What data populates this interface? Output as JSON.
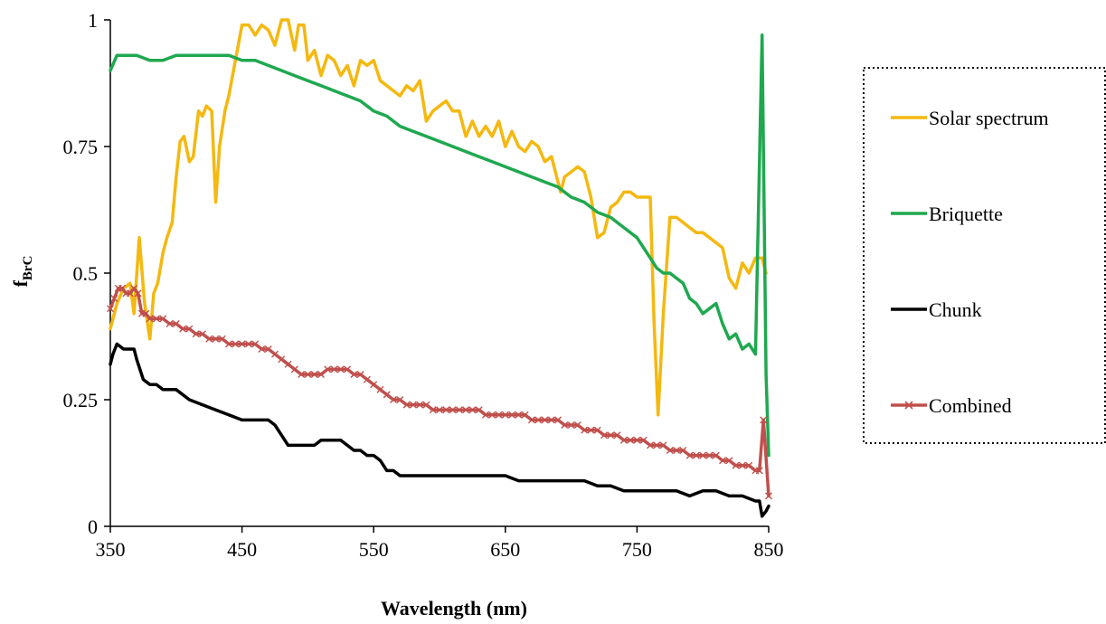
{
  "chart_data": {
    "type": "line",
    "xlabel": "Wavelength (nm)",
    "ylabel_main": "f",
    "ylabel_sub": "BrC",
    "xlim": [
      350,
      850
    ],
    "ylim": [
      0,
      1
    ],
    "x_ticks": [
      350,
      450,
      550,
      650,
      750,
      850
    ],
    "y_ticks": [
      0,
      0.25,
      0.5,
      0.75,
      1
    ],
    "y_tick_labels": [
      "0",
      "0.25",
      "0.5",
      "0.75",
      "1"
    ],
    "grid": false,
    "legend_position": "right",
    "series": [
      {
        "name": "Solar spectrum",
        "color": "#f4b810",
        "marker": "none",
        "x": [
          350,
          355,
          360,
          365,
          368,
          372,
          376,
          380,
          383,
          386,
          390,
          393,
          397,
          400,
          403,
          406,
          410,
          413,
          417,
          420,
          423,
          427,
          430,
          433,
          437,
          440,
          445,
          450,
          455,
          460,
          465,
          470,
          475,
          480,
          485,
          490,
          493,
          497,
          500,
          505,
          510,
          515,
          520,
          525,
          530,
          535,
          540,
          545,
          550,
          555,
          560,
          565,
          570,
          575,
          580,
          585,
          590,
          595,
          600,
          605,
          610,
          615,
          620,
          625,
          630,
          635,
          640,
          645,
          650,
          655,
          660,
          665,
          670,
          675,
          680,
          685,
          690,
          692,
          695,
          700,
          705,
          710,
          715,
          720,
          725,
          730,
          735,
          740,
          745,
          750,
          755,
          760,
          763,
          766,
          770,
          775,
          780,
          785,
          790,
          795,
          800,
          805,
          810,
          815,
          820,
          825,
          830,
          835,
          840,
          845,
          848
        ],
        "y": [
          0.39,
          0.44,
          0.47,
          0.48,
          0.42,
          0.57,
          0.44,
          0.37,
          0.46,
          0.48,
          0.54,
          0.57,
          0.6,
          0.69,
          0.76,
          0.77,
          0.72,
          0.73,
          0.82,
          0.81,
          0.83,
          0.82,
          0.64,
          0.75,
          0.82,
          0.85,
          0.92,
          0.99,
          0.99,
          0.97,
          0.99,
          0.98,
          0.95,
          1.0,
          1.0,
          0.94,
          0.99,
          0.99,
          0.92,
          0.94,
          0.89,
          0.93,
          0.92,
          0.89,
          0.91,
          0.87,
          0.92,
          0.91,
          0.92,
          0.88,
          0.87,
          0.86,
          0.85,
          0.87,
          0.86,
          0.88,
          0.8,
          0.82,
          0.83,
          0.84,
          0.82,
          0.82,
          0.77,
          0.8,
          0.77,
          0.79,
          0.77,
          0.8,
          0.75,
          0.78,
          0.75,
          0.74,
          0.76,
          0.75,
          0.72,
          0.73,
          0.68,
          0.66,
          0.69,
          0.7,
          0.71,
          0.7,
          0.65,
          0.57,
          0.58,
          0.63,
          0.64,
          0.66,
          0.66,
          0.65,
          0.65,
          0.65,
          0.4,
          0.22,
          0.42,
          0.61,
          0.61,
          0.6,
          0.59,
          0.58,
          0.58,
          0.57,
          0.56,
          0.55,
          0.49,
          0.47,
          0.52,
          0.5,
          0.53,
          0.53,
          0.5
        ]
      },
      {
        "name": "Briquette",
        "color": "#1fa84f",
        "marker": "none",
        "x": [
          350,
          355,
          360,
          370,
          380,
          390,
          400,
          410,
          420,
          430,
          440,
          450,
          460,
          470,
          480,
          490,
          500,
          510,
          520,
          530,
          540,
          550,
          560,
          570,
          580,
          590,
          600,
          610,
          620,
          630,
          640,
          650,
          660,
          670,
          680,
          690,
          700,
          710,
          720,
          730,
          740,
          750,
          755,
          760,
          765,
          770,
          775,
          780,
          785,
          790,
          795,
          800,
          805,
          810,
          815,
          820,
          825,
          830,
          835,
          840,
          845,
          848,
          850
        ],
        "y": [
          0.9,
          0.93,
          0.93,
          0.93,
          0.92,
          0.92,
          0.93,
          0.93,
          0.93,
          0.93,
          0.93,
          0.92,
          0.92,
          0.91,
          0.9,
          0.89,
          0.88,
          0.87,
          0.86,
          0.85,
          0.84,
          0.82,
          0.81,
          0.79,
          0.78,
          0.77,
          0.76,
          0.75,
          0.74,
          0.73,
          0.72,
          0.71,
          0.7,
          0.69,
          0.68,
          0.67,
          0.65,
          0.64,
          0.62,
          0.61,
          0.59,
          0.57,
          0.55,
          0.53,
          0.51,
          0.5,
          0.5,
          0.49,
          0.48,
          0.45,
          0.44,
          0.42,
          0.43,
          0.44,
          0.4,
          0.37,
          0.38,
          0.35,
          0.36,
          0.34,
          0.97,
          0.3,
          0.14
        ]
      },
      {
        "name": "Chunk",
        "color": "#000000",
        "marker": "none",
        "x": [
          350,
          352,
          355,
          360,
          365,
          368,
          370,
          375,
          380,
          385,
          390,
          400,
          410,
          420,
          430,
          440,
          450,
          460,
          470,
          475,
          480,
          485,
          490,
          495,
          500,
          505,
          510,
          515,
          520,
          525,
          530,
          535,
          540,
          545,
          550,
          555,
          560,
          565,
          570,
          580,
          590,
          600,
          610,
          620,
          630,
          640,
          650,
          660,
          670,
          680,
          690,
          700,
          710,
          720,
          730,
          740,
          750,
          760,
          770,
          780,
          790,
          800,
          810,
          820,
          830,
          840,
          843,
          845,
          848,
          850
        ],
        "y": [
          0.32,
          0.34,
          0.36,
          0.35,
          0.35,
          0.35,
          0.33,
          0.29,
          0.28,
          0.28,
          0.27,
          0.27,
          0.25,
          0.24,
          0.23,
          0.22,
          0.21,
          0.21,
          0.21,
          0.2,
          0.18,
          0.16,
          0.16,
          0.16,
          0.16,
          0.16,
          0.17,
          0.17,
          0.17,
          0.17,
          0.16,
          0.15,
          0.15,
          0.14,
          0.14,
          0.13,
          0.11,
          0.11,
          0.1,
          0.1,
          0.1,
          0.1,
          0.1,
          0.1,
          0.1,
          0.1,
          0.1,
          0.09,
          0.09,
          0.09,
          0.09,
          0.09,
          0.09,
          0.08,
          0.08,
          0.07,
          0.07,
          0.07,
          0.07,
          0.07,
          0.06,
          0.07,
          0.07,
          0.06,
          0.06,
          0.05,
          0.05,
          0.02,
          0.03,
          0.04
        ]
      },
      {
        "name": "Combined",
        "color": "#c0504d",
        "marker": "x",
        "x": [
          350,
          353,
          356,
          359,
          362,
          365,
          368,
          371,
          374,
          377,
          380,
          385,
          390,
          395,
          400,
          405,
          410,
          415,
          420,
          425,
          430,
          435,
          440,
          445,
          450,
          455,
          460,
          465,
          470,
          475,
          480,
          485,
          490,
          495,
          500,
          505,
          510,
          515,
          520,
          525,
          530,
          535,
          540,
          545,
          550,
          555,
          560,
          565,
          570,
          575,
          580,
          585,
          590,
          595,
          600,
          605,
          610,
          615,
          620,
          625,
          630,
          635,
          640,
          645,
          650,
          655,
          660,
          665,
          670,
          675,
          680,
          685,
          690,
          695,
          700,
          705,
          710,
          715,
          720,
          725,
          730,
          735,
          740,
          745,
          750,
          755,
          760,
          765,
          770,
          775,
          780,
          785,
          790,
          795,
          800,
          805,
          810,
          815,
          820,
          825,
          830,
          835,
          840,
          843,
          846,
          850
        ],
        "y": [
          0.43,
          0.45,
          0.47,
          0.47,
          0.46,
          0.46,
          0.47,
          0.46,
          0.42,
          0.42,
          0.41,
          0.41,
          0.41,
          0.4,
          0.4,
          0.39,
          0.39,
          0.38,
          0.38,
          0.37,
          0.37,
          0.37,
          0.36,
          0.36,
          0.36,
          0.36,
          0.36,
          0.35,
          0.35,
          0.34,
          0.33,
          0.32,
          0.31,
          0.3,
          0.3,
          0.3,
          0.3,
          0.31,
          0.31,
          0.31,
          0.31,
          0.3,
          0.3,
          0.29,
          0.28,
          0.27,
          0.26,
          0.25,
          0.25,
          0.24,
          0.24,
          0.24,
          0.24,
          0.23,
          0.23,
          0.23,
          0.23,
          0.23,
          0.23,
          0.23,
          0.23,
          0.22,
          0.22,
          0.22,
          0.22,
          0.22,
          0.22,
          0.22,
          0.21,
          0.21,
          0.21,
          0.21,
          0.21,
          0.2,
          0.2,
          0.2,
          0.19,
          0.19,
          0.19,
          0.18,
          0.18,
          0.18,
          0.17,
          0.17,
          0.17,
          0.17,
          0.16,
          0.16,
          0.16,
          0.15,
          0.15,
          0.15,
          0.14,
          0.14,
          0.14,
          0.14,
          0.14,
          0.13,
          0.13,
          0.12,
          0.12,
          0.12,
          0.11,
          0.11,
          0.21,
          0.06
        ]
      }
    ]
  }
}
